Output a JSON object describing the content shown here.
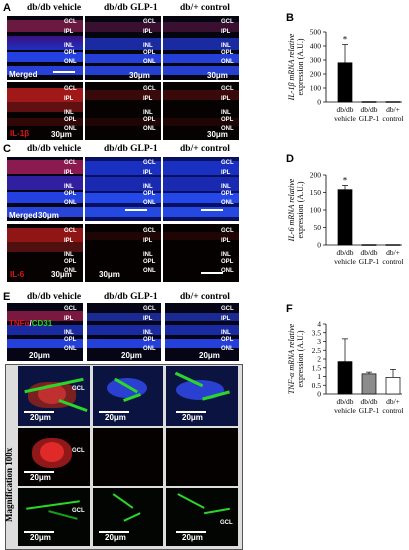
{
  "panels": {
    "A": "A",
    "B": "B",
    "C": "C",
    "D": "D",
    "E": "E",
    "F": "F"
  },
  "columns": [
    "db/db vehicle",
    "db/db GLP-1",
    "db/+ control"
  ],
  "layers": [
    "GCL",
    "IPL",
    "INL",
    "OPL",
    "ONL"
  ],
  "labels": {
    "merged": "Merged",
    "il1b": "IL-1β",
    "il6": "IL-6",
    "tnfa": "TNFα",
    "cd31": "CD31",
    "scale_30": "30μm",
    "scale_20": "20μm",
    "gcl": "GCL",
    "magnification": "Magnification 100x"
  },
  "colors": {
    "dapi_blue": "#1a2fd6",
    "red_stain": "#e01515",
    "green_stain": "#2bd62b",
    "bar_black": "#000000",
    "bar_gray": "#8c8c8c",
    "bar_white": "#ffffff"
  },
  "chart_data": [
    {
      "type": "bar",
      "ylabel": "IL-1β mRNA relative expression (A.U.)",
      "categories": [
        "db/db vehicle",
        "db/db GLP-1",
        "db/+ control"
      ],
      "values": [
        280,
        3,
        3
      ],
      "errors": [
        130,
        0,
        0
      ],
      "ylim": [
        0,
        500
      ],
      "yticks": [
        0,
        100,
        200,
        300,
        400,
        500
      ],
      "annotation": "*"
    },
    {
      "type": "bar",
      "ylabel": "IL-6 mRNA relative expression (A.U.)",
      "categories": [
        "db/db vehicle",
        "db/db GLP-1",
        "db/+ control"
      ],
      "values": [
        158,
        1,
        1
      ],
      "errors": [
        12,
        0,
        0
      ],
      "ylim": [
        0,
        200
      ],
      "yticks": [
        0,
        50,
        100,
        150,
        200
      ],
      "annotation": "*"
    },
    {
      "type": "bar",
      "ylabel": "TNF-α mRNA relative expression (A.U.)",
      "categories": [
        "db/db vehicle",
        "db/db GLP-1",
        "db/+ control"
      ],
      "values": [
        1.85,
        1.15,
        0.95
      ],
      "errors": [
        1.3,
        0.1,
        0.45
      ],
      "ylim": [
        0,
        4
      ],
      "yticks": [
        0,
        0.5,
        1,
        1.5,
        2,
        2.5,
        3,
        3.5,
        4
      ],
      "annotation": ""
    }
  ]
}
